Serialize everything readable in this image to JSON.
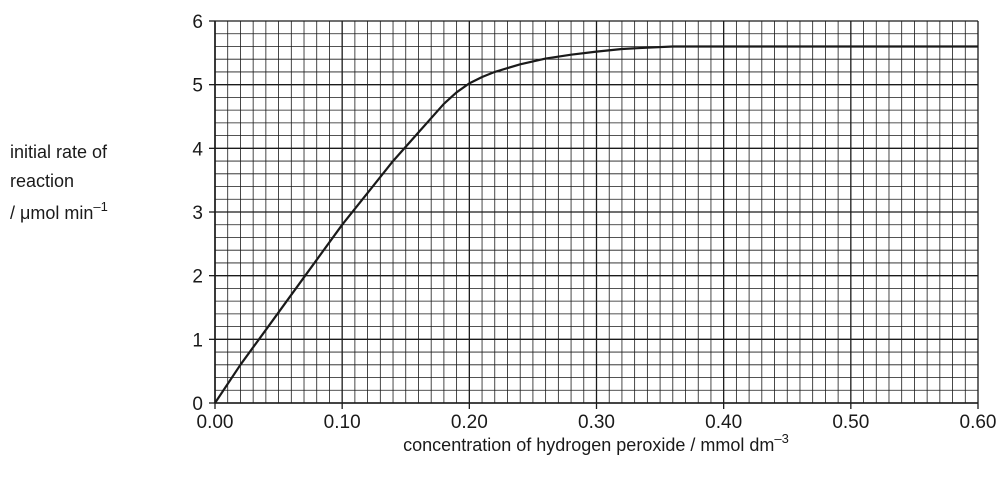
{
  "chart_data": {
    "type": "line",
    "title": "",
    "xlabel": {
      "main": "concentration of hydrogen peroxide / mmol dm",
      "superscript": "–3"
    },
    "ylabel": {
      "line1": "initial rate of",
      "line2": "reaction",
      "line3": "/ μmol min",
      "superscript": "–1"
    },
    "xlim": [
      0,
      0.6
    ],
    "ylim": [
      0,
      6
    ],
    "x_ticks": [
      "0.00",
      "0.10",
      "0.20",
      "0.30",
      "0.40",
      "0.50",
      "0.60"
    ],
    "y_ticks": [
      "0",
      "1",
      "2",
      "3",
      "4",
      "5",
      "6"
    ],
    "grid": true,
    "grid_minor_step_x": 0.01,
    "grid_minor_step_y": 0.2,
    "series": [
      {
        "x": [
          0.0,
          0.02,
          0.04,
          0.06,
          0.08,
          0.1,
          0.12,
          0.14,
          0.16,
          0.18,
          0.19,
          0.2,
          0.21,
          0.22,
          0.24,
          0.26,
          0.28,
          0.3,
          0.32,
          0.34,
          0.36,
          0.4,
          0.5,
          0.6
        ],
        "y": [
          0.0,
          0.6,
          1.15,
          1.7,
          2.25,
          2.8,
          3.3,
          3.8,
          4.25,
          4.7,
          4.88,
          5.02,
          5.12,
          5.2,
          5.32,
          5.41,
          5.47,
          5.52,
          5.56,
          5.58,
          5.6,
          5.6,
          5.6,
          5.6
        ],
        "color": "#1a1a1a"
      }
    ]
  }
}
